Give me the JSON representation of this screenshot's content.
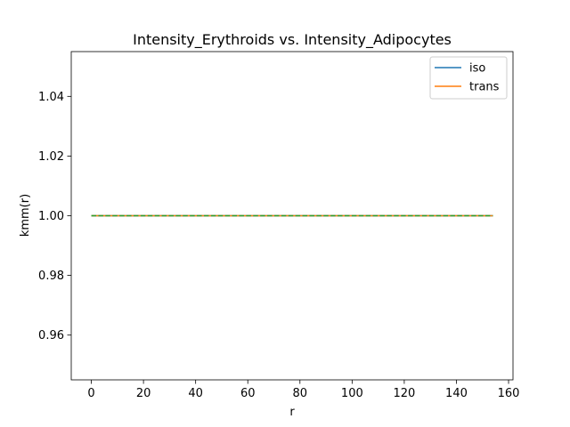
{
  "chart_data": {
    "type": "line",
    "title": "Intensity_Erythroids vs. Intensity_Adipocytes",
    "xlabel": "r",
    "ylabel": "kmm(r)",
    "xlim": [
      -7.7,
      161.7
    ],
    "ylim": [
      0.945,
      1.055
    ],
    "xticks": [
      0,
      20,
      40,
      60,
      80,
      100,
      120,
      140,
      160
    ],
    "yticks": [
      0.96,
      0.98,
      1.0,
      1.02,
      1.04
    ],
    "ytick_labels": [
      "0.96",
      "0.98",
      "1.00",
      "1.02",
      "1.04"
    ],
    "grid": false,
    "legend_position": "top-right",
    "series": [
      {
        "name": "iso",
        "color": "#1f77b4",
        "style": "solid",
        "x": [
          0,
          154
        ],
        "y": [
          1.0,
          1.0
        ]
      },
      {
        "name": "trans",
        "color": "#ff7f0e",
        "style": "solid",
        "x": [
          0,
          154
        ],
        "y": [
          1.0,
          1.0
        ]
      },
      {
        "color": "#2ca02c",
        "style": "dashed",
        "x": [
          0,
          154
        ],
        "y": [
          1.0,
          1.0
        ]
      }
    ]
  }
}
